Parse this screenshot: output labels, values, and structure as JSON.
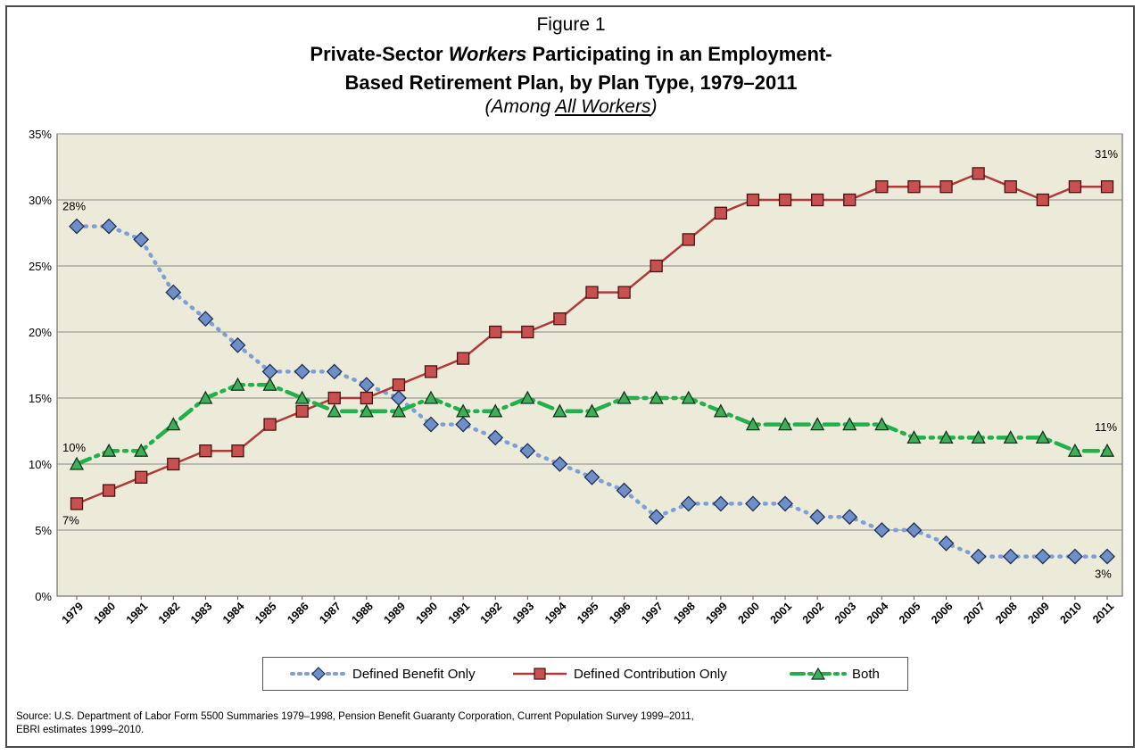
{
  "figure_label": "Figure 1",
  "title_line1_pre": "Private-Sector ",
  "title_line1_em": "Workers",
  "title_line1_post": " Participating in an Employment-",
  "title_line2": "Based Retirement Plan, by Plan Type, 1979–2011",
  "subtitle_open": "(Among ",
  "subtitle_u": "All Workers",
  "subtitle_close": ")",
  "source_line1": "Source: U.S. Department of Labor Form 5500 Summaries 1979–1998, Pension Benefit Guaranty Corporation, Current Population Survey 1999–2011,",
  "source_line2": "EBRI estimates 1999–2010.",
  "colors": {
    "db": "#7e9fd6",
    "db_marker": "#4a6aa8",
    "dc": "#b03a3a",
    "dc_marker": "#c85050",
    "both": "#22b04a",
    "both_marker": "#2d8a3e",
    "plot_bg": "#ecebd9"
  },
  "chart_data": {
    "type": "line",
    "title": "Private-Sector Workers Participating in an Employment-Based Retirement Plan, by Plan Type, 1979–2011",
    "xlabel": "",
    "ylabel": "",
    "ylim": [
      0,
      35
    ],
    "yticks": [
      "0%",
      "5%",
      "10%",
      "15%",
      "20%",
      "25%",
      "30%",
      "35%"
    ],
    "grid": true,
    "legend_position": "bottom",
    "categories": [
      "1979",
      "1980",
      "1981",
      "1982",
      "1983",
      "1984",
      "1985",
      "1986",
      "1987",
      "1988",
      "1989",
      "1990",
      "1991",
      "1992",
      "1993",
      "1994",
      "1995",
      "1996",
      "1997",
      "1998",
      "1999",
      "2000",
      "2001",
      "2002",
      "2003",
      "2004",
      "2005",
      "2006",
      "2007",
      "2008",
      "2009",
      "2010",
      "2011"
    ],
    "series": [
      {
        "name": "Defined Benefit Only",
        "marker": "diamond",
        "style": "dotted",
        "values": [
          28,
          28,
          27,
          23,
          21,
          19,
          17,
          17,
          17,
          16,
          15,
          13,
          13,
          12,
          11,
          10,
          9,
          8,
          6,
          7,
          7,
          7,
          7,
          6,
          6,
          5,
          5,
          4,
          3,
          3,
          3,
          3,
          3
        ]
      },
      {
        "name": "Defined Contribution Only",
        "marker": "square",
        "style": "solid",
        "values": [
          7,
          8,
          9,
          10,
          11,
          11,
          13,
          14,
          15,
          15,
          16,
          17,
          18,
          20,
          20,
          21,
          23,
          23,
          25,
          27,
          29,
          30,
          30,
          30,
          30,
          31,
          31,
          31,
          32,
          31,
          30,
          31,
          31
        ]
      },
      {
        "name": "Both",
        "marker": "triangle",
        "style": "dashdot",
        "values": [
          10,
          11,
          11,
          13,
          15,
          16,
          16,
          15,
          14,
          14,
          14,
          15,
          14,
          14,
          15,
          14,
          14,
          15,
          15,
          15,
          14,
          13,
          13,
          13,
          13,
          13,
          12,
          12,
          12,
          12,
          12,
          11,
          11
        ]
      }
    ],
    "annotations": [
      {
        "text": "28%",
        "category": "1979",
        "value": 28,
        "series": "Defined Benefit Only"
      },
      {
        "text": "10%",
        "category": "1979",
        "value": 10,
        "series": "Both"
      },
      {
        "text": "7%",
        "category": "1979",
        "value": 7,
        "series": "Defined Contribution Only"
      },
      {
        "text": "31%",
        "category": "2011",
        "value": 31,
        "series": "Defined Contribution Only"
      },
      {
        "text": "11%",
        "category": "2011",
        "value": 11,
        "series": "Both"
      },
      {
        "text": "3%",
        "category": "2011",
        "value": 3,
        "series": "Defined Benefit Only"
      }
    ]
  }
}
